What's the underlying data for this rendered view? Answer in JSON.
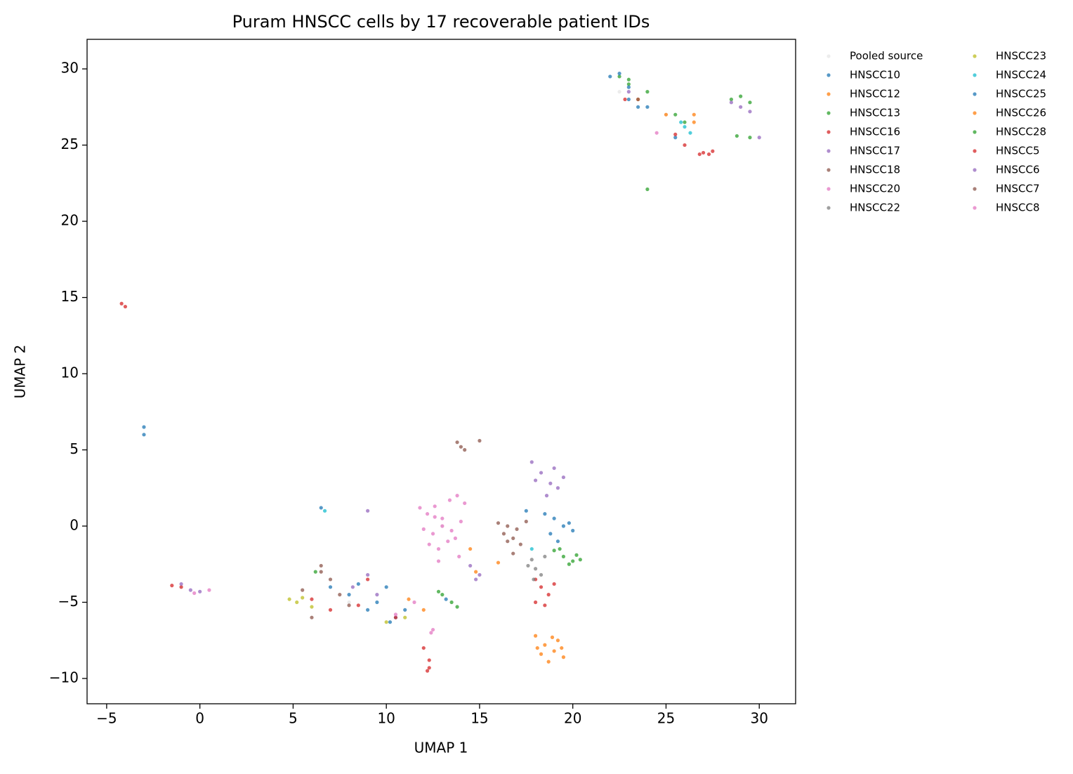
{
  "chart_data": {
    "type": "scatter",
    "title": "Puram HNSCC cells by 17 recoverable patient IDs",
    "x_label": "UMAP 1",
    "y_label": "UMAP 2",
    "xlim": [
      -6.05,
      31.95
    ],
    "ylim": [
      -11.66,
      31.94
    ],
    "xticks": [
      {
        "value": -5,
        "label": "−5"
      },
      0,
      5,
      10,
      15,
      20,
      25,
      30
    ],
    "yticks": [
      {
        "value": -10,
        "label": "−10"
      },
      {
        "value": -5,
        "label": "−5"
      },
      0,
      5,
      10,
      15,
      20,
      25,
      30
    ],
    "legend": "outside-upper-right",
    "series": [
      {
        "name": "Pooled source",
        "color": "#e6e6e6",
        "x": [
          22.5,
          25,
          13,
          8,
          -1
        ],
        "y": [
          28.5,
          27,
          0,
          -5,
          -4
        ]
      },
      {
        "name": "HNSCC10",
        "color": "#1f77b4",
        "x": [
          19,
          19.5,
          18.8,
          19.8,
          18.5,
          19.2,
          20,
          8,
          9,
          10,
          10.5,
          22,
          23,
          23.5,
          25.5,
          -3,
          6.5,
          17.5
        ],
        "y": [
          0.5,
          0,
          -0.5,
          0.2,
          0.8,
          -1,
          -0.3,
          -4.5,
          -5.5,
          -4,
          -6,
          29.5,
          28,
          27.5,
          25.5,
          6.5,
          1.2,
          1
        ]
      },
      {
        "name": "HNSCC12",
        "color": "#ff7f0e",
        "x": [
          18,
          18.5,
          19,
          19.5,
          18.7,
          19.2,
          18.3,
          19.4,
          18.9,
          18.1,
          14.8,
          16,
          25,
          26.5
        ],
        "y": [
          -7.2,
          -7.8,
          -8.2,
          -8.6,
          -8.9,
          -7.5,
          -8.4,
          -8,
          -7.3,
          -8,
          -3,
          -2.4,
          27,
          26.5
        ]
      },
      {
        "name": "HNSCC13",
        "color": "#2ca02c",
        "x": [
          19,
          19.5,
          20,
          20.4,
          19.3,
          19.8,
          20.2,
          22.5,
          23,
          24,
          25.5,
          26,
          28.5,
          29,
          29.5,
          24,
          12.8,
          13.5
        ],
        "y": [
          -1.6,
          -2,
          -2.3,
          -2.2,
          -1.5,
          -2.5,
          -1.9,
          29.5,
          29,
          28.5,
          27,
          26.5,
          28,
          28.2,
          27.8,
          22.1,
          -4.3,
          -5
        ]
      },
      {
        "name": "HNSCC16",
        "color": "#d62728",
        "x": [
          18,
          18.3,
          18.7,
          18,
          18.5,
          19,
          12.2,
          12.3,
          12,
          27,
          27.5,
          26.8,
          -4.2,
          -4,
          6,
          7,
          -1,
          8.5
        ],
        "y": [
          -3.5,
          -4,
          -4.5,
          -5,
          -5.2,
          -3.8,
          -9.5,
          -8.8,
          -8,
          24.5,
          24.6,
          24.4,
          14.6,
          14.4,
          -4.8,
          -5.5,
          -4,
          -5.2
        ]
      },
      {
        "name": "HNSCC17",
        "color": "#9467bd",
        "x": [
          17.8,
          18.3,
          18.8,
          19.2,
          19.5,
          18,
          18.6,
          19,
          14.5,
          14.8,
          15,
          9,
          28.5,
          29,
          0,
          -1
        ],
        "y": [
          4.2,
          3.5,
          2.8,
          2.5,
          3.2,
          3,
          2,
          3.8,
          -2.6,
          -3.5,
          -3.2,
          1,
          27.8,
          27.5,
          -4.3,
          -3.8
        ]
      },
      {
        "name": "HNSCC18",
        "color": "#8c564b",
        "x": [
          16,
          16.5,
          17,
          17.5,
          16.8,
          17.2,
          16.3,
          13.8,
          14.2,
          15,
          6.5,
          7.5,
          6,
          16.8
        ],
        "y": [
          0.2,
          0,
          -0.2,
          0.3,
          -0.8,
          -1.2,
          -0.5,
          5.5,
          5,
          5.6,
          -3,
          -4.5,
          -6,
          -1.8
        ]
      },
      {
        "name": "HNSCC20",
        "color": "#e377c2",
        "x": [
          11.8,
          12.2,
          12.6,
          13,
          13.4,
          13.8,
          14.2,
          12,
          12.5,
          13,
          13.5,
          14,
          12.3,
          12.8,
          13.3,
          13.7,
          13.9,
          12.8,
          12.6
        ],
        "y": [
          1.2,
          0.8,
          1.3,
          0.5,
          1.7,
          2,
          1.5,
          -0.2,
          -0.5,
          0,
          -0.3,
          0.3,
          -1.2,
          -1.5,
          -1,
          -0.8,
          -2,
          -2.3,
          0.6
        ]
      },
      {
        "name": "HNSCC22",
        "color": "#7f7f7f",
        "x": [
          17.8,
          18,
          18.3,
          17.6,
          18.5,
          17.9
        ],
        "y": [
          -2.2,
          -2.8,
          -3.2,
          -2.6,
          -2,
          -3.5
        ]
      },
      {
        "name": "HNSCC23",
        "color": "#bcbd22",
        "x": [
          4.8,
          5.2,
          5.5,
          6,
          10,
          11
        ],
        "y": [
          -4.8,
          -5,
          -4.7,
          -5.3,
          -6.3,
          -6
        ]
      },
      {
        "name": "HNSCC24",
        "color": "#17becf",
        "x": [
          26,
          26.3,
          25.8,
          17.8,
          6.7
        ],
        "y": [
          26.2,
          25.8,
          26.5,
          -1.5,
          1
        ]
      },
      {
        "name": "HNSCC25",
        "color": "#1f77b4",
        "x": [
          8.5,
          9.5,
          10.2,
          11,
          7,
          23,
          24,
          22.5,
          13.2,
          -3
        ],
        "y": [
          -3.8,
          -5,
          -6.3,
          -5.5,
          -4,
          28.8,
          27.5,
          29.7,
          -4.8,
          6
        ]
      },
      {
        "name": "HNSCC26",
        "color": "#ff7f0e",
        "x": [
          11.2,
          12,
          23.5,
          26.5,
          14.5
        ],
        "y": [
          -4.8,
          -5.5,
          28,
          27,
          -1.5
        ]
      },
      {
        "name": "HNSCC28",
        "color": "#2ca02c",
        "x": [
          13,
          13.8,
          28.8,
          29.5,
          23,
          6.2
        ],
        "y": [
          -4.5,
          -5.3,
          25.6,
          25.5,
          29.3,
          -3
        ]
      },
      {
        "name": "HNSCC5",
        "color": "#d62728",
        "x": [
          25.5,
          26,
          22.8,
          9,
          10.5,
          -1.5,
          12.3,
          27.3
        ],
        "y": [
          25.7,
          25,
          28,
          -3.5,
          -6,
          -3.9,
          -9.3,
          24.4
        ]
      },
      {
        "name": "HNSCC6",
        "color": "#9467bd",
        "x": [
          9,
          9.5,
          8.2,
          -0.5,
          29.5,
          30,
          23
        ],
        "y": [
          -3.2,
          -4.5,
          -4,
          -4.2,
          27.2,
          25.5,
          28.5
        ]
      },
      {
        "name": "HNSCC7",
        "color": "#8c564b",
        "x": [
          6.5,
          7,
          8,
          5.5,
          16.5,
          14,
          23.5
        ],
        "y": [
          -2.6,
          -3.5,
          -5.2,
          -4.2,
          -1,
          5.2,
          28
        ]
      },
      {
        "name": "HNSCC8",
        "color": "#e377c2",
        "x": [
          10.5,
          11.5,
          12.5,
          -0.3,
          0.5,
          24.5,
          12.4
        ],
        "y": [
          -5.8,
          -5,
          -6.8,
          -4.4,
          -4.2,
          25.8,
          -7
        ]
      }
    ]
  }
}
